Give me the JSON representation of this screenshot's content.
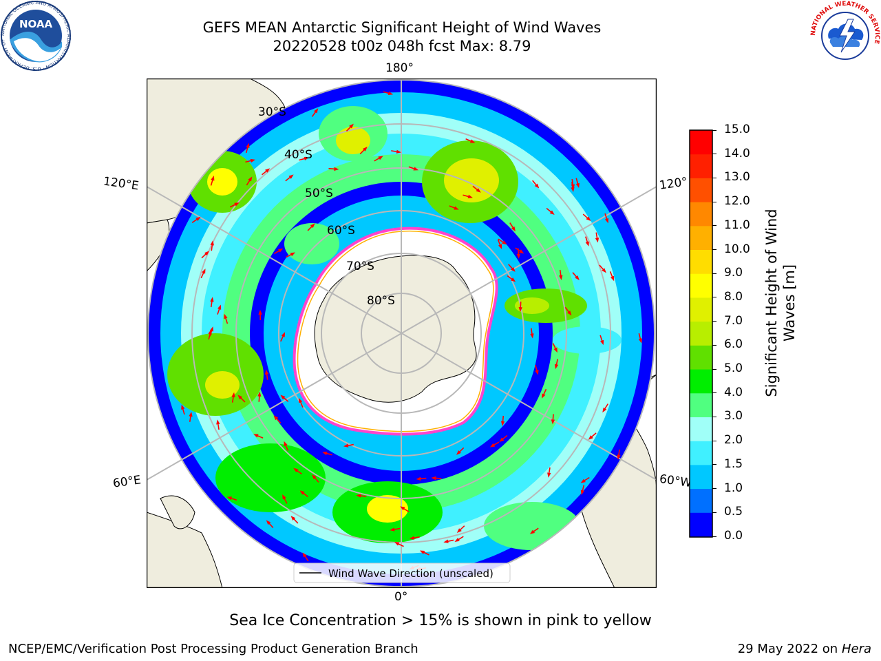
{
  "header": {
    "title_line1": "GEFS MEAN Antarctic Significant Height of Wind Waves",
    "title_line2": "20220528 t00z 048h fcst   Max: 8.79"
  },
  "logos": {
    "noaa_text": "NOAA",
    "noaa_ring": "NATIONAL OCEANIC AND ATMOSPHERIC ADMINISTRATION · U.S. DEPARTMENT OF COMMERCE",
    "nws_ring": "NATIONAL WEATHER SERVICE"
  },
  "map": {
    "longitude_labels": {
      "top": "180°",
      "bottom": "0°",
      "left_upper": "120°E",
      "left_lower": "60°E",
      "right_upper": "120°",
      "right_lower": "60°W"
    },
    "latitude_labels": [
      "30°S",
      "40°S",
      "50°S",
      "60°S",
      "70°S",
      "80°S"
    ],
    "legend_label": "Wind Wave Direction (unscaled)",
    "colors": {
      "land": "#efedde",
      "sea_ice": "#ffffff",
      "ice_edge": "#ff44cc",
      "arrow": "#ff0000",
      "graticule": "#b8b8b8"
    }
  },
  "colorbar": {
    "title": "Significant Height of Wind Waves [m]",
    "title_line1": "Significant Height of Wind",
    "title_line2": "Waves [m]",
    "tick_labels": [
      "0.0",
      "0.5",
      "1.0",
      "1.5",
      "2.0",
      "3.0",
      "4.0",
      "5.0",
      "6.0",
      "7.0",
      "8.0",
      "9.0",
      "10.0",
      "11.0",
      "12.0",
      "13.0",
      "14.0",
      "15.0"
    ],
    "colors": [
      "#0000ff",
      "#0070ff",
      "#00c8ff",
      "#40f0ff",
      "#a0fff8",
      "#50ff80",
      "#00ee00",
      "#60e000",
      "#b8ee00",
      "#e0f000",
      "#ffff00",
      "#ffdd00",
      "#ffb000",
      "#ff8800",
      "#ff5000",
      "#ff2000",
      "#ff0000"
    ]
  },
  "captions": {
    "sea_ice_note": "Sea Ice Concentration > 15% is shown in pink to yellow",
    "credit": "NCEP/EMC/Verification Post Processing Product Generation Branch",
    "date_prefix": "29 May 2022 on",
    "date_machine": "Hera"
  }
}
